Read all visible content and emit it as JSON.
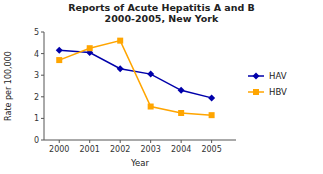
{
  "chart_data": {
    "type": "line",
    "title": "Reports of Acute Hepatitis A and B\n2000-2005, New York",
    "xlabel": "Year",
    "ylabel": "Rate per 100,000",
    "x": [
      2000,
      2001,
      2002,
      2003,
      2004,
      2005
    ],
    "series": [
      {
        "name": "HAV",
        "color": "#0000AA",
        "marker": "diamond",
        "values": [
          4.15,
          4.05,
          3.3,
          3.05,
          2.3,
          1.95
        ]
      },
      {
        "name": "HBV",
        "color": "#FFA500",
        "marker": "square",
        "values": [
          3.7,
          4.25,
          4.6,
          1.55,
          1.25,
          1.15
        ]
      }
    ],
    "xlim": [
      1999.5,
      2005.8
    ],
    "xticks": [
      2000,
      2001,
      2002,
      2003,
      2004,
      2005
    ],
    "ylim": [
      0,
      5
    ],
    "yticks": [
      0,
      1,
      2,
      3,
      4,
      5
    ],
    "grid": false,
    "legend": "right"
  }
}
